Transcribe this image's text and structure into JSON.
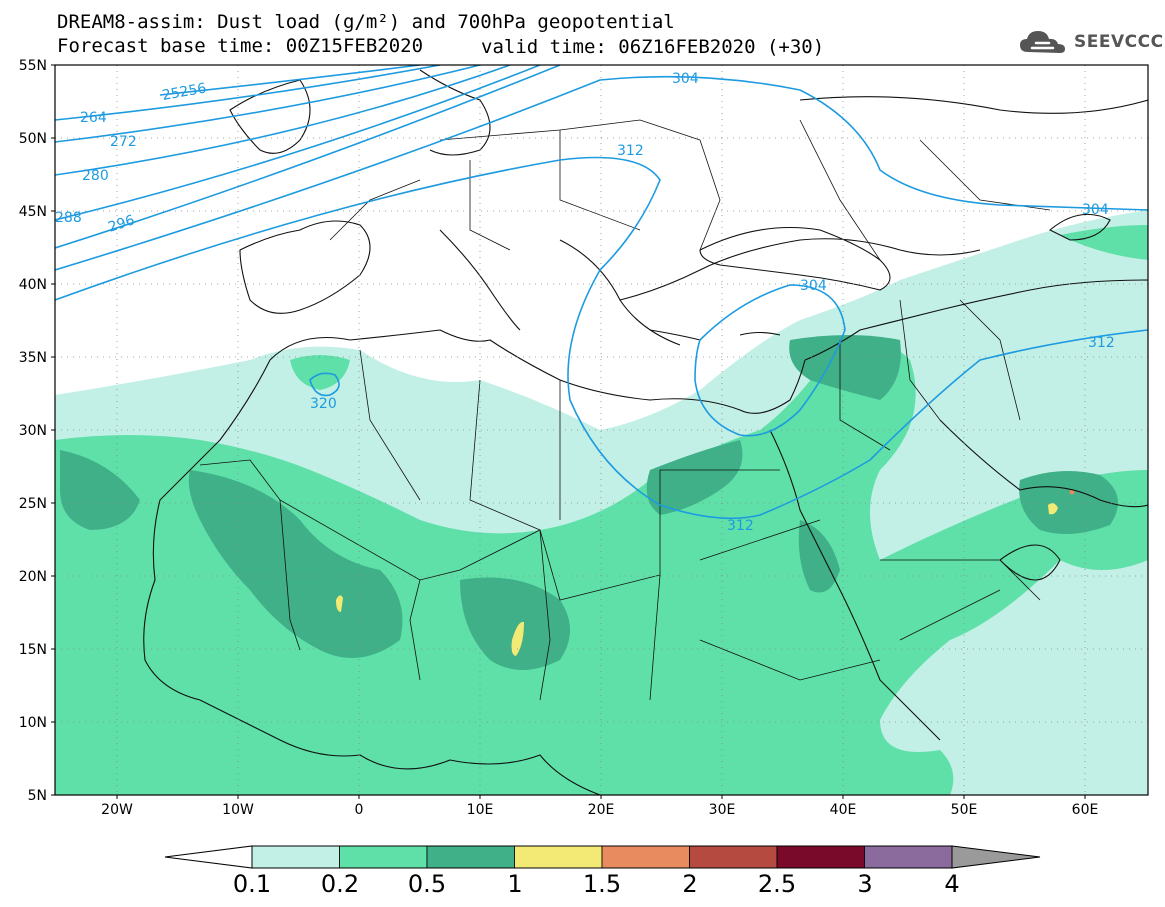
{
  "title": {
    "line1": "DREAM8-assim: Dust load (g/m²) and 700hPa geopotential",
    "line2": "Forecast base time: 00Z15FEB2020",
    "valid": "valid time: 06Z16FEB2020 (+30)"
  },
  "logo": {
    "text": "SEEVCCC",
    "icon": "cloud-icon"
  },
  "map": {
    "lat_ticks": [
      "55N",
      "50N",
      "45N",
      "40N",
      "35N",
      "30N",
      "25N",
      "20N",
      "15N",
      "10N",
      "5N"
    ],
    "lon_ticks": [
      "20W",
      "10W",
      "0",
      "10E",
      "20E",
      "30E",
      "40E",
      "50E",
      "60E"
    ],
    "contour_labels": [
      "25256",
      "264",
      "272",
      "280",
      "288",
      "296",
      "304",
      "312",
      "304",
      "320",
      "304",
      "312",
      "312"
    ]
  },
  "colorbar": {
    "labels": [
      "0.1",
      "0.2",
      "0.5",
      "1",
      "1.5",
      "2",
      "2.5",
      "3",
      "4"
    ],
    "colors": [
      "#c3f0e6",
      "#5ee0a8",
      "#3fb088",
      "#f3ea76",
      "#e88c60",
      "#b44a40",
      "#7a0a2a",
      "#8b6a9e",
      "#9a9a9a"
    ]
  },
  "colors": {
    "dust_light": "#c3f0e6",
    "dust_mid": "#5ee0a8",
    "dust_dark": "#3fb088",
    "dust_yellow": "#f3ea76",
    "contour": "#1e9be0"
  }
}
